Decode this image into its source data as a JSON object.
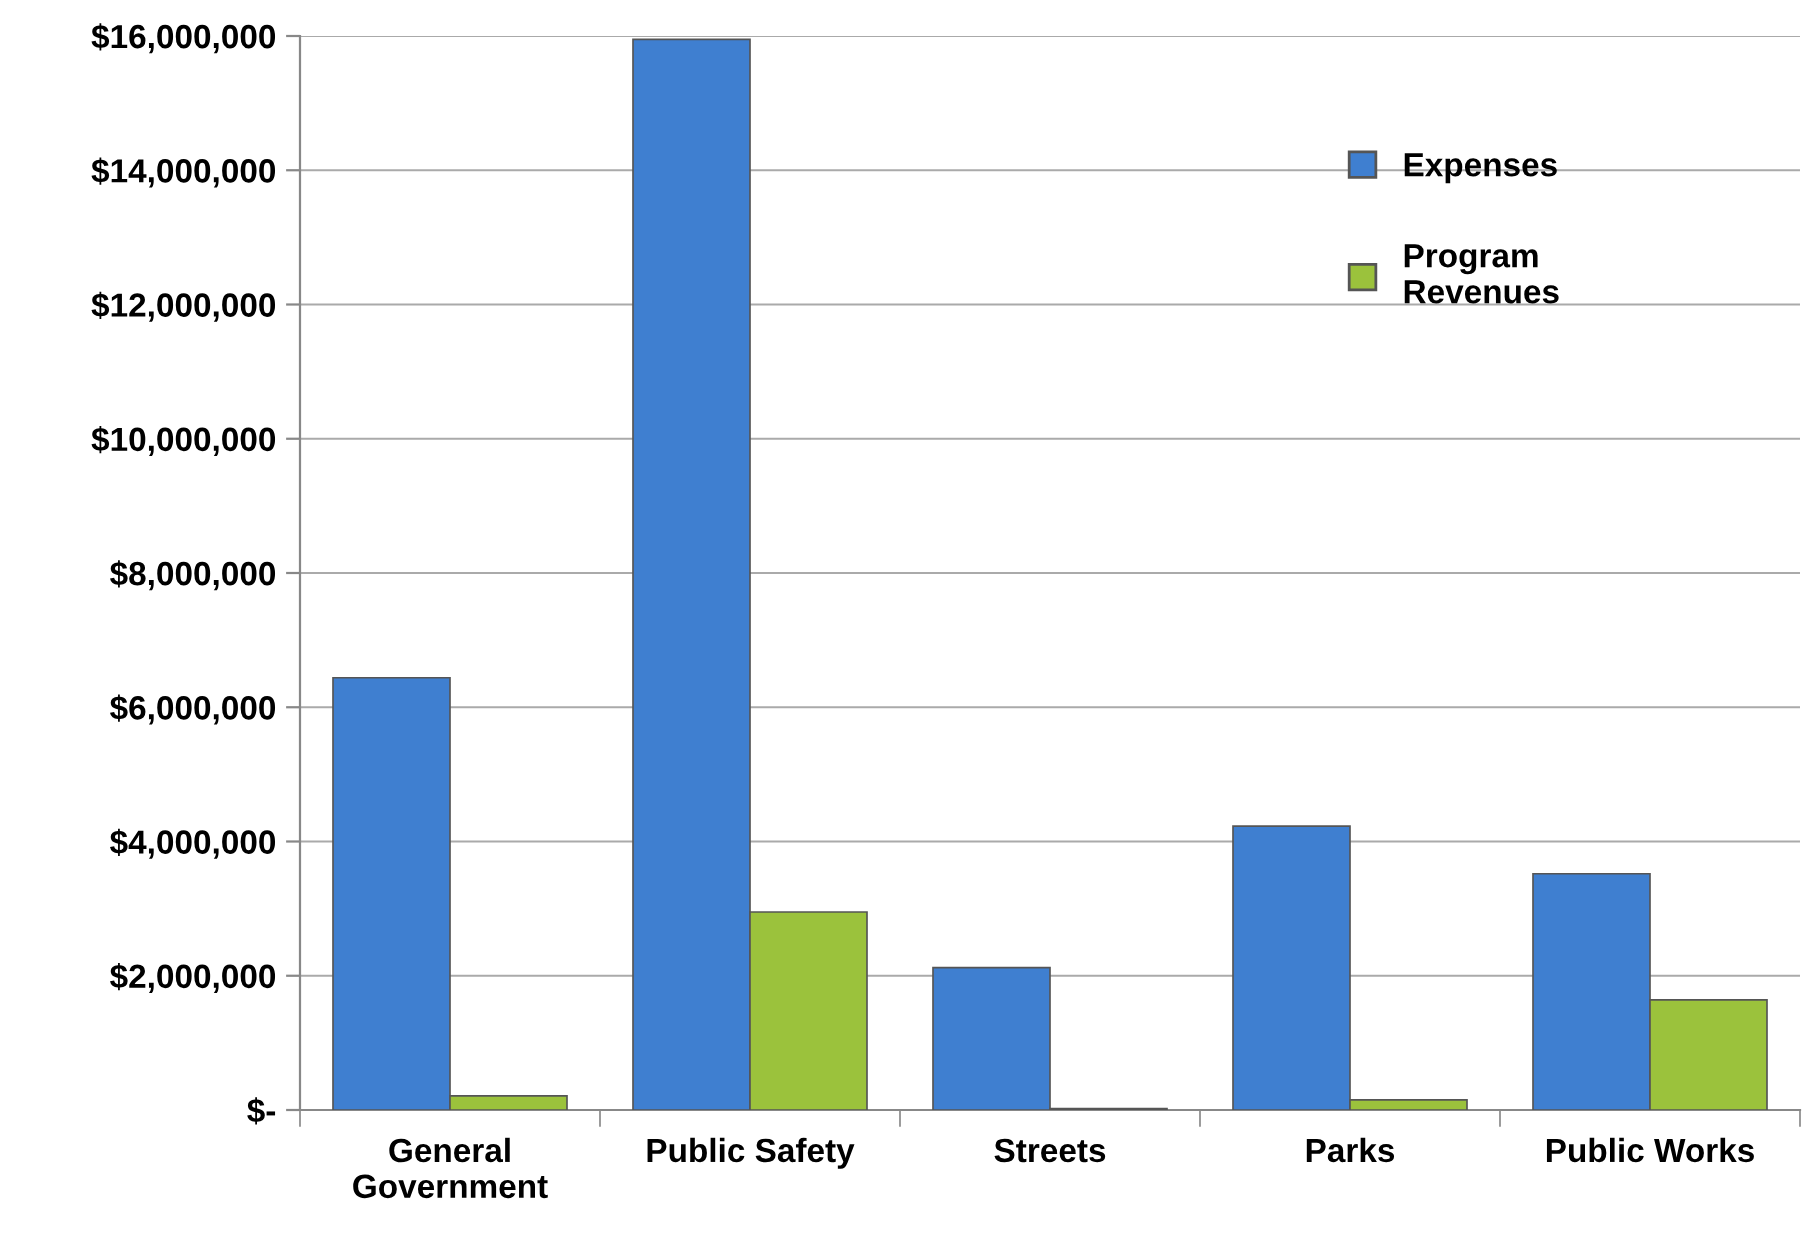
{
  "chart_data": {
    "type": "bar",
    "categories": [
      "General\nGovernment",
      "Public Safety",
      "Streets",
      "Parks",
      "Public Works"
    ],
    "series": [
      {
        "name": "Expenses",
        "color": "#3f7fd0",
        "values": [
          6440000,
          15950000,
          2120000,
          4230000,
          3520000
        ]
      },
      {
        "name": "Program\nRevenues",
        "color": "#9bc23c",
        "values": [
          210000,
          2950000,
          20000,
          150000,
          1640000
        ]
      }
    ],
    "ylim": [
      0,
      16000000
    ],
    "yticks": [
      {
        "value": 0,
        "label": "$-"
      },
      {
        "value": 2000000,
        "label": "$2,000,000"
      },
      {
        "value": 4000000,
        "label": "$4,000,000"
      },
      {
        "value": 6000000,
        "label": "$6,000,000"
      },
      {
        "value": 8000000,
        "label": "$8,000,000"
      },
      {
        "value": 10000000,
        "label": "$10,000,000"
      },
      {
        "value": 12000000,
        "label": "$12,000,000"
      },
      {
        "value": 14000000,
        "label": "$14,000,000"
      },
      {
        "value": 16000000,
        "label": "$16,000,000"
      }
    ],
    "grid": "y",
    "legend": "top right"
  }
}
